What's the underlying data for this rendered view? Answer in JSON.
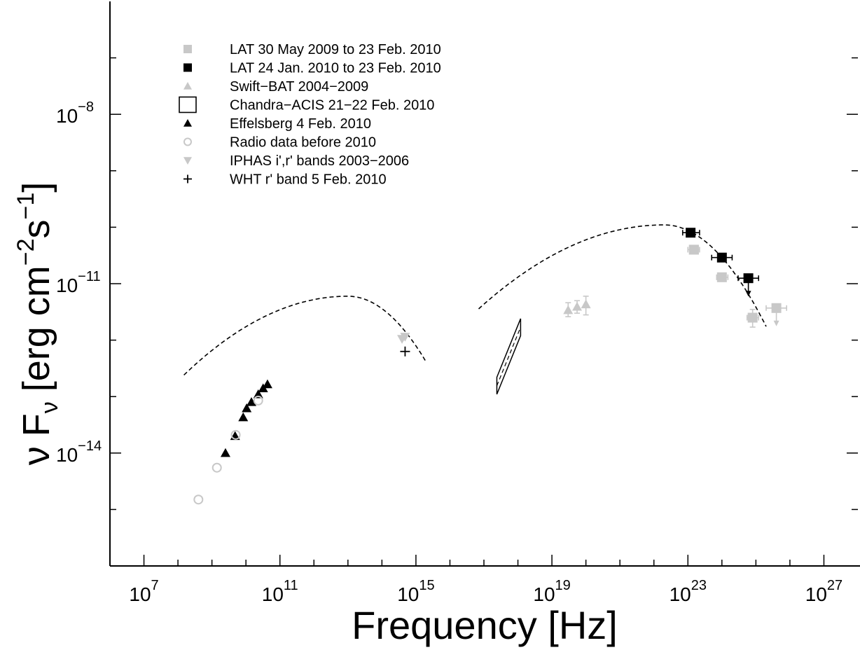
{
  "chart_data": {
    "type": "scatter",
    "title": "",
    "xlabel": "Frequency [Hz]",
    "ylabel_parts": {
      "nu": "ν",
      "F": "F",
      "sub": "ν",
      "unit": "[erg cm",
      "exp1": "−2",
      "s": "s",
      "exp2": "−1",
      "close": "]"
    },
    "x_scale": "log",
    "y_scale": "log",
    "xlim": [
      1000000.0,
      1e+28
    ],
    "ylim": [
      1e-16,
      1e-06
    ],
    "grid": false,
    "legend_placement": "top-left",
    "x_ticks": [
      {
        "mant": "10",
        "exp": "7",
        "value": 10000000.0
      },
      {
        "mant": "10",
        "exp": "11",
        "value": 100000000000.0
      },
      {
        "mant": "10",
        "exp": "15",
        "value": 1000000000000000.0
      },
      {
        "mant": "10",
        "exp": "19",
        "value": 1e+19
      },
      {
        "mant": "10",
        "exp": "23",
        "value": 1e+23
      },
      {
        "mant": "10",
        "exp": "27",
        "value": 1e+27
      }
    ],
    "y_ticks": [
      {
        "mant": "10",
        "exp": "−8",
        "value": 1e-08
      },
      {
        "mant": "10",
        "exp": "−11",
        "value": 1e-11
      },
      {
        "mant": "10",
        "exp": "−14",
        "value": 1e-14
      }
    ],
    "series": [
      {
        "name": "LAT 30 May 2009 to 23 Feb. 2010",
        "marker": "square",
        "color": "#c8c8c8",
        "points": [
          {
            "x": 1.5e+23,
            "y": 4e-11,
            "xerr": [
              1e+23,
              2.2e+23
            ]
          },
          {
            "x": 1.5e+23,
            "y": 4e-11
          },
          {
            "x": 1e+24,
            "y": 1.3e-11,
            "xerr": [
              7e+23,
              1.5e+24
            ]
          },
          {
            "x": 8e+24,
            "y": 2.5e-12,
            "xerr": [
              5.5e+24,
              1.2e+25
            ],
            "yerr": [
              1.7e-12,
              3.5e-12
            ]
          },
          {
            "x": 4e+25,
            "y": 3.7e-12,
            "xerr": [
              2e+25,
              8e+25
            ],
            "upper": true
          }
        ]
      },
      {
        "name": "LAT 24 Jan. 2010 to 23 Feb. 2010",
        "marker": "square",
        "color": "#000000",
        "points": [
          {
            "x": 1.2e+23,
            "y": 8e-11,
            "xerr": [
              7e+22,
              2.2e+23
            ]
          },
          {
            "x": 1e+24,
            "y": 2.9e-11,
            "xerr": [
              5e+23,
              2e+24
            ]
          },
          {
            "x": 6e+24,
            "y": 1.25e-11,
            "xerr": [
              3e+24,
              1.2e+25
            ],
            "upper": true
          }
        ]
      },
      {
        "name": "Swift−BAT 2004−2009",
        "marker": "triangle-up",
        "color": "#c8c8c8",
        "points": [
          {
            "x": 3e+19,
            "y": 3.4e-12,
            "yerr": [
              2.6e-12,
              4.6e-12
            ]
          },
          {
            "x": 5.5e+19,
            "y": 3.9e-12,
            "yerr": [
              3e-12,
              5e-12
            ]
          },
          {
            "x": 1e+20,
            "y": 4.3e-12,
            "yerr": [
              2.8e-12,
              6e-12
            ]
          }
        ]
      },
      {
        "name": "Chandra−ACIS 21−22 Feb. 2010",
        "marker": "bowtie",
        "color": "#000000",
        "bowtie": {
          "x_low": 2.4e+17,
          "x_high": 1.2e+18,
          "upper": [
            2.2e-13,
            2.4e-12
          ],
          "lower": [
            1.1e-13,
            1.2e-12
          ]
        }
      },
      {
        "name": "Effelsberg 4 Feb. 2010",
        "marker": "triangle-up",
        "color": "#000000",
        "points": [
          {
            "x": 2500000000.0,
            "y": 1e-14
          },
          {
            "x": 4800000000.0,
            "y": 2e-14
          },
          {
            "x": 8300000000.0,
            "y": 4.3e-14
          },
          {
            "x": 10500000000.0,
            "y": 6.2e-14
          },
          {
            "x": 14500000000.0,
            "y": 8e-14
          },
          {
            "x": 23000000000.0,
            "y": 1.1e-13
          },
          {
            "x": 32000000000.0,
            "y": 1.4e-13
          },
          {
            "x": 43000000000.0,
            "y": 1.65e-13
          }
        ]
      },
      {
        "name": "Radio data before 2010",
        "marker": "circle-open",
        "color": "#c8c8c8",
        "points": [
          {
            "x": 400000000.0,
            "y": 1.5e-15
          },
          {
            "x": 1400000000.0,
            "y": 5.5e-15
          },
          {
            "x": 5000000000.0,
            "y": 2.1e-14
          },
          {
            "x": 23000000000.0,
            "y": 8.5e-14
          }
        ]
      },
      {
        "name": "IPHAS i',r' bands 2003−2006",
        "marker": "triangle-down",
        "color": "#c8c8c8",
        "points": [
          {
            "x": 390000000000000.0,
            "y": 1.05e-12
          },
          {
            "x": 480000000000000.0,
            "y": 1.15e-12
          }
        ]
      },
      {
        "name": "WHT r' band 5 Feb. 2010",
        "marker": "plus",
        "color": "#000000",
        "points": [
          {
            "x": 480000000000000.0,
            "y": 6.3e-13
          }
        ]
      }
    ],
    "models": [
      {
        "kind": "synchrotron",
        "peak_x": 10000000000000.0,
        "peak_y": 6e-12,
        "x_from": 150000000.0,
        "x_to": 2000000000000000.0
      },
      {
        "kind": "inverse-compton",
        "peak_x": 2e+22,
        "peak_y": 1.1e-10,
        "x_from": 7e+16,
        "x_to": 2e+25
      }
    ],
    "colors": {
      "axis": "#000000",
      "gray": "#c8c8c8",
      "model": "#000000"
    }
  }
}
